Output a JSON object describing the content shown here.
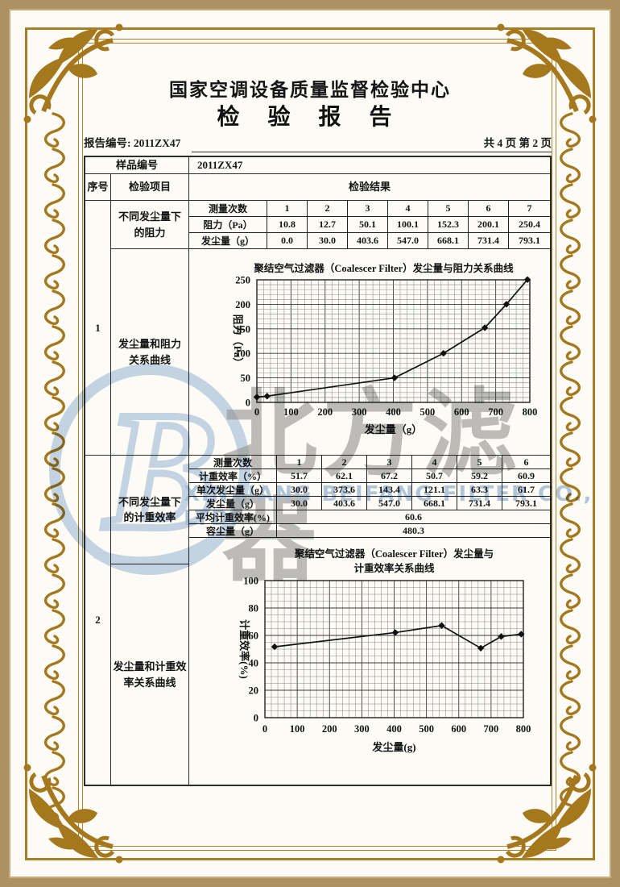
{
  "header": {
    "org_title": "国家空调设备质量监督检验中心",
    "report_title": "检 验 报 告",
    "report_no": "报告编号: 2011ZX47",
    "page_info": "共 4 页 第 2 页"
  },
  "table": {
    "sample_label": "样品编号",
    "sample_value": "2011ZX47",
    "seq_header": "序号",
    "item_header": "检验项目",
    "result_header": "检验结果",
    "row1": {
      "seq": "1",
      "item_top": "不同发尘量下\n的阻力",
      "item_bottom": "发尘量和阻力\n关系曲线"
    },
    "row2": {
      "seq": "2",
      "item_top": "不同发尘量下\n的计重效率",
      "item_bottom": "发尘量和计重效\n率关系曲线"
    }
  },
  "result_table_1": {
    "header_label": "测量次数",
    "headers": [
      "1",
      "2",
      "3",
      "4",
      "5",
      "6",
      "7"
    ],
    "rows": [
      {
        "label": "阻力（Pa）",
        "values": [
          "10.8",
          "12.7",
          "50.1",
          "100.1",
          "152.3",
          "200.1",
          "250.4"
        ]
      },
      {
        "label": "发尘量（g）",
        "values": [
          "0.0",
          "30.0",
          "403.6",
          "547.0",
          "668.1",
          "731.4",
          "793.1"
        ]
      }
    ]
  },
  "result_table_2": {
    "header_label": "测量次数",
    "headers": [
      "1",
      "2",
      "3",
      "4",
      "5",
      "6"
    ],
    "rows": [
      {
        "label": "计重效率（%）",
        "values": [
          "51.7",
          "62.1",
          "67.2",
          "50.7",
          "59.2",
          "60.9"
        ]
      },
      {
        "label": "单次发尘量（g）",
        "values": [
          "30.0",
          "373.6",
          "143.4",
          "121.1",
          "63.3",
          "61.7"
        ]
      },
      {
        "label": "发尘量（g）",
        "values": [
          "30.0",
          "403.6",
          "547.0",
          "668.1",
          "731.4",
          "793.1"
        ]
      }
    ],
    "span_rows": [
      {
        "label": "平均计重效率(%)",
        "value": "60.6"
      },
      {
        "label": "容尘量（g）",
        "value": "480.3"
      }
    ]
  },
  "chart_data": [
    {
      "type": "line",
      "title": "聚结空气过滤器（Coalescer Filter）发尘量与阻力关系曲线",
      "xlabel": "发尘量（g）",
      "ylabel": "阻力（Pa）",
      "x": [
        0,
        30,
        403.6,
        547.0,
        668.1,
        731.4,
        793.1
      ],
      "y": [
        10.8,
        12.7,
        50.1,
        100.1,
        152.3,
        200.1,
        250.4
      ],
      "xlim": [
        0,
        800
      ],
      "ylim": [
        0,
        250
      ],
      "xticks": [
        0,
        100,
        200,
        300,
        400,
        500,
        600,
        700,
        800
      ],
      "yticks": [
        0,
        50,
        100,
        150,
        200,
        250
      ],
      "grid": true,
      "marker": "diamond",
      "legend": "none"
    },
    {
      "type": "line",
      "title": "聚结空气过滤器（Coalescer Filter）发尘量与\n计重效率关系曲线",
      "xlabel": "发尘量(g)",
      "ylabel": "计重效率(%)",
      "x": [
        30,
        403.6,
        547.0,
        668.1,
        731.4,
        793.1
      ],
      "y": [
        51.7,
        62.1,
        67.2,
        50.7,
        59.2,
        60.9
      ],
      "xlim": [
        0,
        800
      ],
      "ylim": [
        0,
        100
      ],
      "xticks": [
        0,
        100,
        200,
        300,
        400,
        500,
        600,
        700,
        800
      ],
      "yticks": [
        0,
        20,
        40,
        60,
        80,
        100
      ],
      "grid": true,
      "marker": "diamond",
      "legend": "none"
    }
  ],
  "watermark": {
    "logo_letter": "B",
    "text_cn": "北方滤器",
    "text_en": "XINXIANG BEIFANG FILTER CO., LTD."
  },
  "colors": {
    "frame_gold": "#a6781e",
    "band_tan": "#ae9162",
    "table_line": "#2d2d2d",
    "watermark_blue": "#c7d7ea",
    "watermark_gray": "#9a9a9a"
  }
}
